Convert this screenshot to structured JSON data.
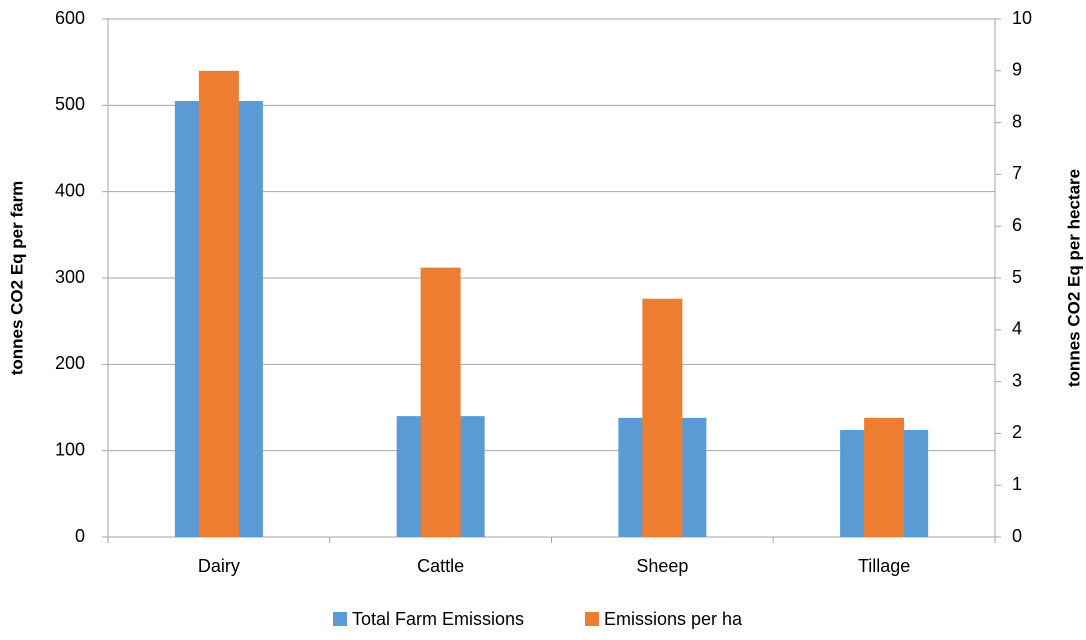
{
  "chart_data": {
    "type": "bar",
    "categories": [
      "Dairy",
      "Cattle",
      "Sheep",
      "Tillage"
    ],
    "series": [
      {
        "name": "Total Farm Emissions",
        "color": "#5b9bd5",
        "values": [
          505,
          140,
          138,
          124
        ]
      },
      {
        "name": "Emissions per ha",
        "color": "#ed7d31",
        "axis": "y2",
        "values": [
          9.0,
          5.2,
          4.6,
          2.3
        ]
      }
    ],
    "y_label": "tonnes CO2 Eq per farm",
    "y2_label": "tonnes CO2 Eq per hectare",
    "ylim": [
      0,
      600
    ],
    "yticks": [
      0,
      100,
      200,
      300,
      400,
      500,
      600
    ],
    "y2lim": [
      0,
      10
    ],
    "y2ticks": [
      0,
      1,
      2,
      3,
      4,
      5,
      6,
      7,
      8,
      9,
      10
    ],
    "grid": true,
    "legend": "bottom"
  }
}
